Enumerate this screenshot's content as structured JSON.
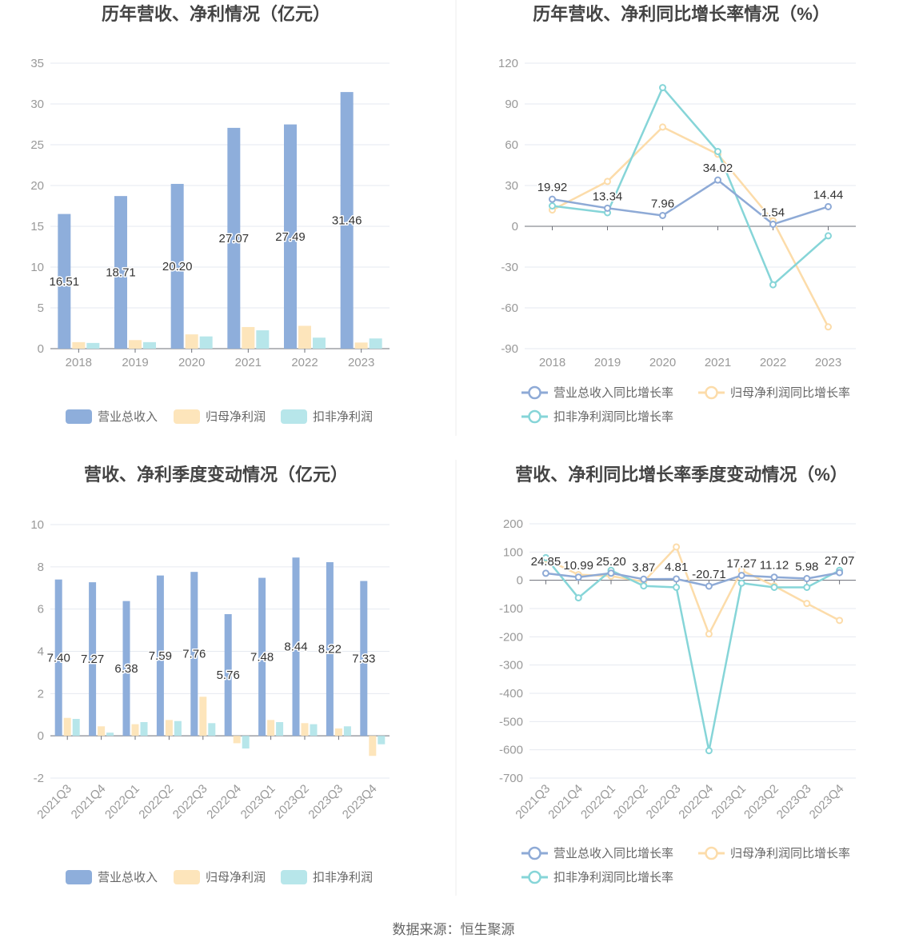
{
  "colors": {
    "revenue": "#8eaedb",
    "parent_profit": "#fde5bb",
    "deducted_profit": "#b7e6ea",
    "revenue_line": "#8eaad6",
    "parent_line": "#fcdcaa",
    "deducted_line": "#86d5d8",
    "grid": "#e6e9f0",
    "axis": "#6e7079"
  },
  "source_text": "数据来源：恒生聚源",
  "chart_data": [
    {
      "type": "bar",
      "title": "历年营收、净利情况（亿元）",
      "categories": [
        "2018",
        "2019",
        "2020",
        "2021",
        "2022",
        "2023"
      ],
      "ylim": [
        0,
        35
      ],
      "yticks": [
        0,
        5,
        10,
        15,
        20,
        25,
        30,
        35
      ],
      "series": [
        {
          "name": "营业总收入",
          "values": [
            16.51,
            18.71,
            20.2,
            27.07,
            27.49,
            31.46
          ],
          "labels": [
            "16.51",
            "18.71",
            "20.20",
            "27.07",
            "27.49",
            "31.46"
          ]
        },
        {
          "name": "归母净利润",
          "values": [
            0.8,
            1.05,
            1.75,
            2.65,
            2.8,
            0.75
          ]
        },
        {
          "name": "扣非净利润",
          "values": [
            0.7,
            0.8,
            1.5,
            2.25,
            1.35,
            1.25
          ]
        }
      ],
      "legend_position": "bottom"
    },
    {
      "type": "line",
      "title": "历年营收、净利同比增长率情况（%）",
      "categories": [
        "2018",
        "2019",
        "2020",
        "2021",
        "2022",
        "2023"
      ],
      "ylim": [
        -90,
        120
      ],
      "yticks": [
        -90,
        -60,
        -30,
        0,
        30,
        60,
        90,
        120
      ],
      "series": [
        {
          "name": "营业总收入同比增长率",
          "values": [
            19.92,
            13.34,
            7.96,
            34.02,
            1.54,
            14.44
          ],
          "labels": [
            "19.92",
            "13.34",
            "7.96",
            "34.02",
            "1.54",
            "14.44"
          ]
        },
        {
          "name": "归母净利润同比增长率",
          "values": [
            12,
            33,
            73,
            53,
            4,
            -74
          ]
        },
        {
          "name": "扣非净利润同比增长率",
          "values": [
            15,
            10,
            102,
            55,
            -43,
            -7
          ]
        }
      ],
      "legend_position": "bottom"
    },
    {
      "type": "bar",
      "title": "营收、净利季度变动情况（亿元）",
      "categories": [
        "2021Q3",
        "2021Q4",
        "2022Q1",
        "2022Q2",
        "2022Q3",
        "2022Q4",
        "2023Q1",
        "2023Q2",
        "2023Q3",
        "2023Q4"
      ],
      "ylim": [
        -2,
        10
      ],
      "yticks": [
        -2,
        0,
        2,
        4,
        6,
        8,
        10
      ],
      "series": [
        {
          "name": "营业总收入",
          "values": [
            7.4,
            7.27,
            6.38,
            7.59,
            7.76,
            5.76,
            7.48,
            8.44,
            8.22,
            7.33
          ],
          "labels": [
            "7.40",
            "7.27",
            "6.38",
            "7.59",
            "7.76",
            "5.76",
            "7.48",
            "8.44",
            "8.22",
            "7.33"
          ]
        },
        {
          "name": "归母净利润",
          "values": [
            0.85,
            0.45,
            0.55,
            0.75,
            1.85,
            -0.35,
            0.75,
            0.6,
            0.35,
            -0.95
          ]
        },
        {
          "name": "扣非净利润",
          "values": [
            0.8,
            0.15,
            0.65,
            0.7,
            0.6,
            -0.6,
            0.65,
            0.55,
            0.45,
            -0.4
          ]
        }
      ],
      "legend_position": "bottom"
    },
    {
      "type": "line",
      "title": "营收、净利同比增长率季度变动情况（%）",
      "categories": [
        "2021Q3",
        "2021Q4",
        "2022Q1",
        "2022Q2",
        "2022Q3",
        "2022Q4",
        "2023Q1",
        "2023Q2",
        "2023Q3",
        "2023Q4"
      ],
      "ylim": [
        -700,
        200
      ],
      "yticks": [
        -700,
        -600,
        -500,
        -400,
        -300,
        -200,
        -100,
        0,
        100,
        200
      ],
      "series": [
        {
          "name": "营业总收入同比增长率",
          "values": [
            24.85,
            10.99,
            25.2,
            3.87,
            4.81,
            -20.71,
            17.27,
            11.12,
            5.98,
            27.07
          ],
          "labels": [
            "24.85",
            "10.99",
            "25.20",
            "3.87",
            "4.81",
            "-20.71",
            "17.27",
            "11.12",
            "5.98",
            "27.07"
          ]
        },
        {
          "name": "归母净利润同比增长率",
          "values": [
            75,
            20,
            15,
            -5,
            118,
            -190,
            35,
            -20,
            -82,
            -142
          ]
        },
        {
          "name": "扣非净利润同比增长率",
          "values": [
            80,
            -62,
            35,
            -20,
            -25,
            -603,
            -10,
            -25,
            -25,
            35
          ]
        }
      ],
      "legend_position": "bottom"
    }
  ]
}
